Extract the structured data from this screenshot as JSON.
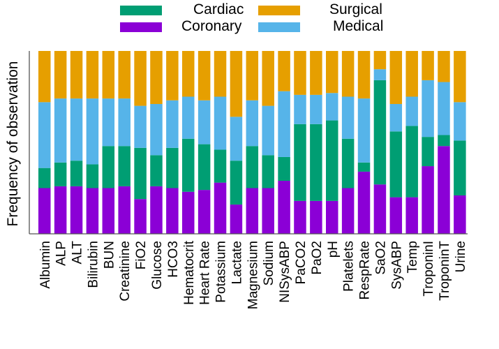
{
  "chart_data": {
    "type": "bar",
    "stacked": true,
    "normalized": true,
    "ylabel": "Frequency of observation",
    "xlabel": "",
    "ylim": [
      0,
      1
    ],
    "grid": false,
    "legend_position": "top",
    "categories": [
      "Albumin",
      "ALP",
      "ALT",
      "Bilirubin",
      "BUN",
      "Creatinine",
      "FiO2",
      "Glucose",
      "HCO3",
      "Hematocrit",
      "Heart Rate",
      "Potassium",
      "Lactate",
      "Magnesium",
      "Sodium",
      "NISysABP",
      "PaCO2",
      "PaO2",
      "pH",
      "Platelets",
      "RespRate",
      "SaO2",
      "SysABP",
      "Temp",
      "TroponinI",
      "TroponinT",
      "Urine"
    ],
    "series": [
      {
        "name": "Coronary",
        "color": "#8b00d6",
        "values": [
          0.25,
          0.26,
          0.26,
          0.25,
          0.25,
          0.26,
          0.19,
          0.26,
          0.25,
          0.23,
          0.24,
          0.28,
          0.16,
          0.25,
          0.25,
          0.29,
          0.18,
          0.18,
          0.18,
          0.25,
          0.34,
          0.27,
          0.2,
          0.2,
          0.37,
          0.48,
          0.21
        ]
      },
      {
        "name": "Cardiac",
        "color": "#009e73",
        "values": [
          0.11,
          0.13,
          0.14,
          0.13,
          0.23,
          0.22,
          0.28,
          0.17,
          0.22,
          0.29,
          0.25,
          0.18,
          0.24,
          0.23,
          0.18,
          0.13,
          0.42,
          0.42,
          0.44,
          0.27,
          0.05,
          0.57,
          0.36,
          0.39,
          0.16,
          0.06,
          0.3
        ]
      },
      {
        "name": "Medical",
        "color": "#56b4e9",
        "values": [
          0.36,
          0.35,
          0.34,
          0.36,
          0.26,
          0.26,
          0.23,
          0.28,
          0.26,
          0.23,
          0.24,
          0.29,
          0.24,
          0.25,
          0.27,
          0.36,
          0.16,
          0.16,
          0.15,
          0.23,
          0.35,
          0.06,
          0.15,
          0.16,
          0.31,
          0.29,
          0.21
        ]
      },
      {
        "name": "Surgical",
        "color": "#e69f00",
        "values": [
          0.28,
          0.26,
          0.26,
          0.26,
          0.26,
          0.26,
          0.3,
          0.29,
          0.27,
          0.25,
          0.27,
          0.25,
          0.36,
          0.27,
          0.3,
          0.22,
          0.24,
          0.24,
          0.23,
          0.25,
          0.26,
          0.1,
          0.29,
          0.25,
          0.16,
          0.17,
          0.28
        ]
      }
    ]
  },
  "legend": {
    "cardiac": "Cardiac",
    "surgical": "Surgical",
    "coronary": "Coronary",
    "medical": "Medical"
  }
}
